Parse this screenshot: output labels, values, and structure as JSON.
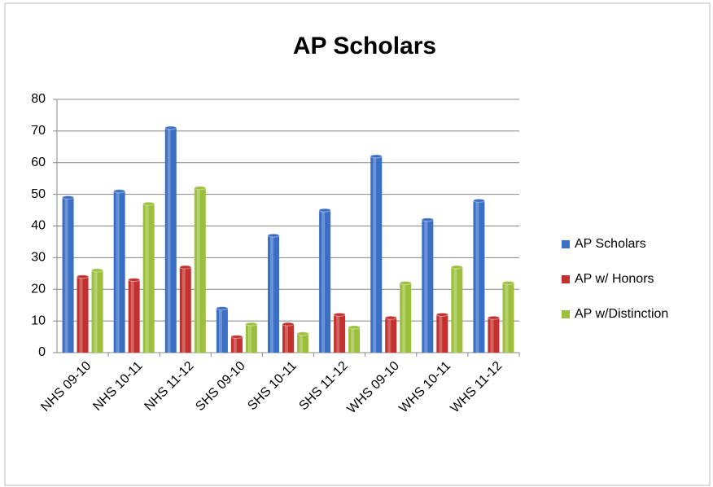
{
  "chart_data": {
    "type": "bar",
    "title": "AP Scholars",
    "categories": [
      "NHS 09-10",
      "NHS 10-11",
      "NHS 11-12",
      "SHS 09-10",
      "SHS 10-11",
      "SHS 11-12",
      "WHS 09-10",
      "WHS 10-11",
      "WHS 11-12"
    ],
    "series": [
      {
        "name": "AP Scholars",
        "color": "#3b6fc6",
        "values": [
          49,
          51,
          71,
          14,
          37,
          45,
          62,
          42,
          48
        ]
      },
      {
        "name": "AP w/ Honors",
        "color": "#c3302e",
        "values": [
          24,
          23,
          27,
          5,
          9,
          12,
          11,
          12,
          11
        ]
      },
      {
        "name": "AP w/Distinction",
        "color": "#9cc03c",
        "values": [
          26,
          47,
          52,
          9,
          6,
          8,
          22,
          27,
          22
        ]
      }
    ],
    "ylim": [
      0,
      80
    ],
    "yticks": [
      0,
      10,
      20,
      30,
      40,
      50,
      60,
      70,
      80
    ],
    "grid": true,
    "legend": "right"
  }
}
